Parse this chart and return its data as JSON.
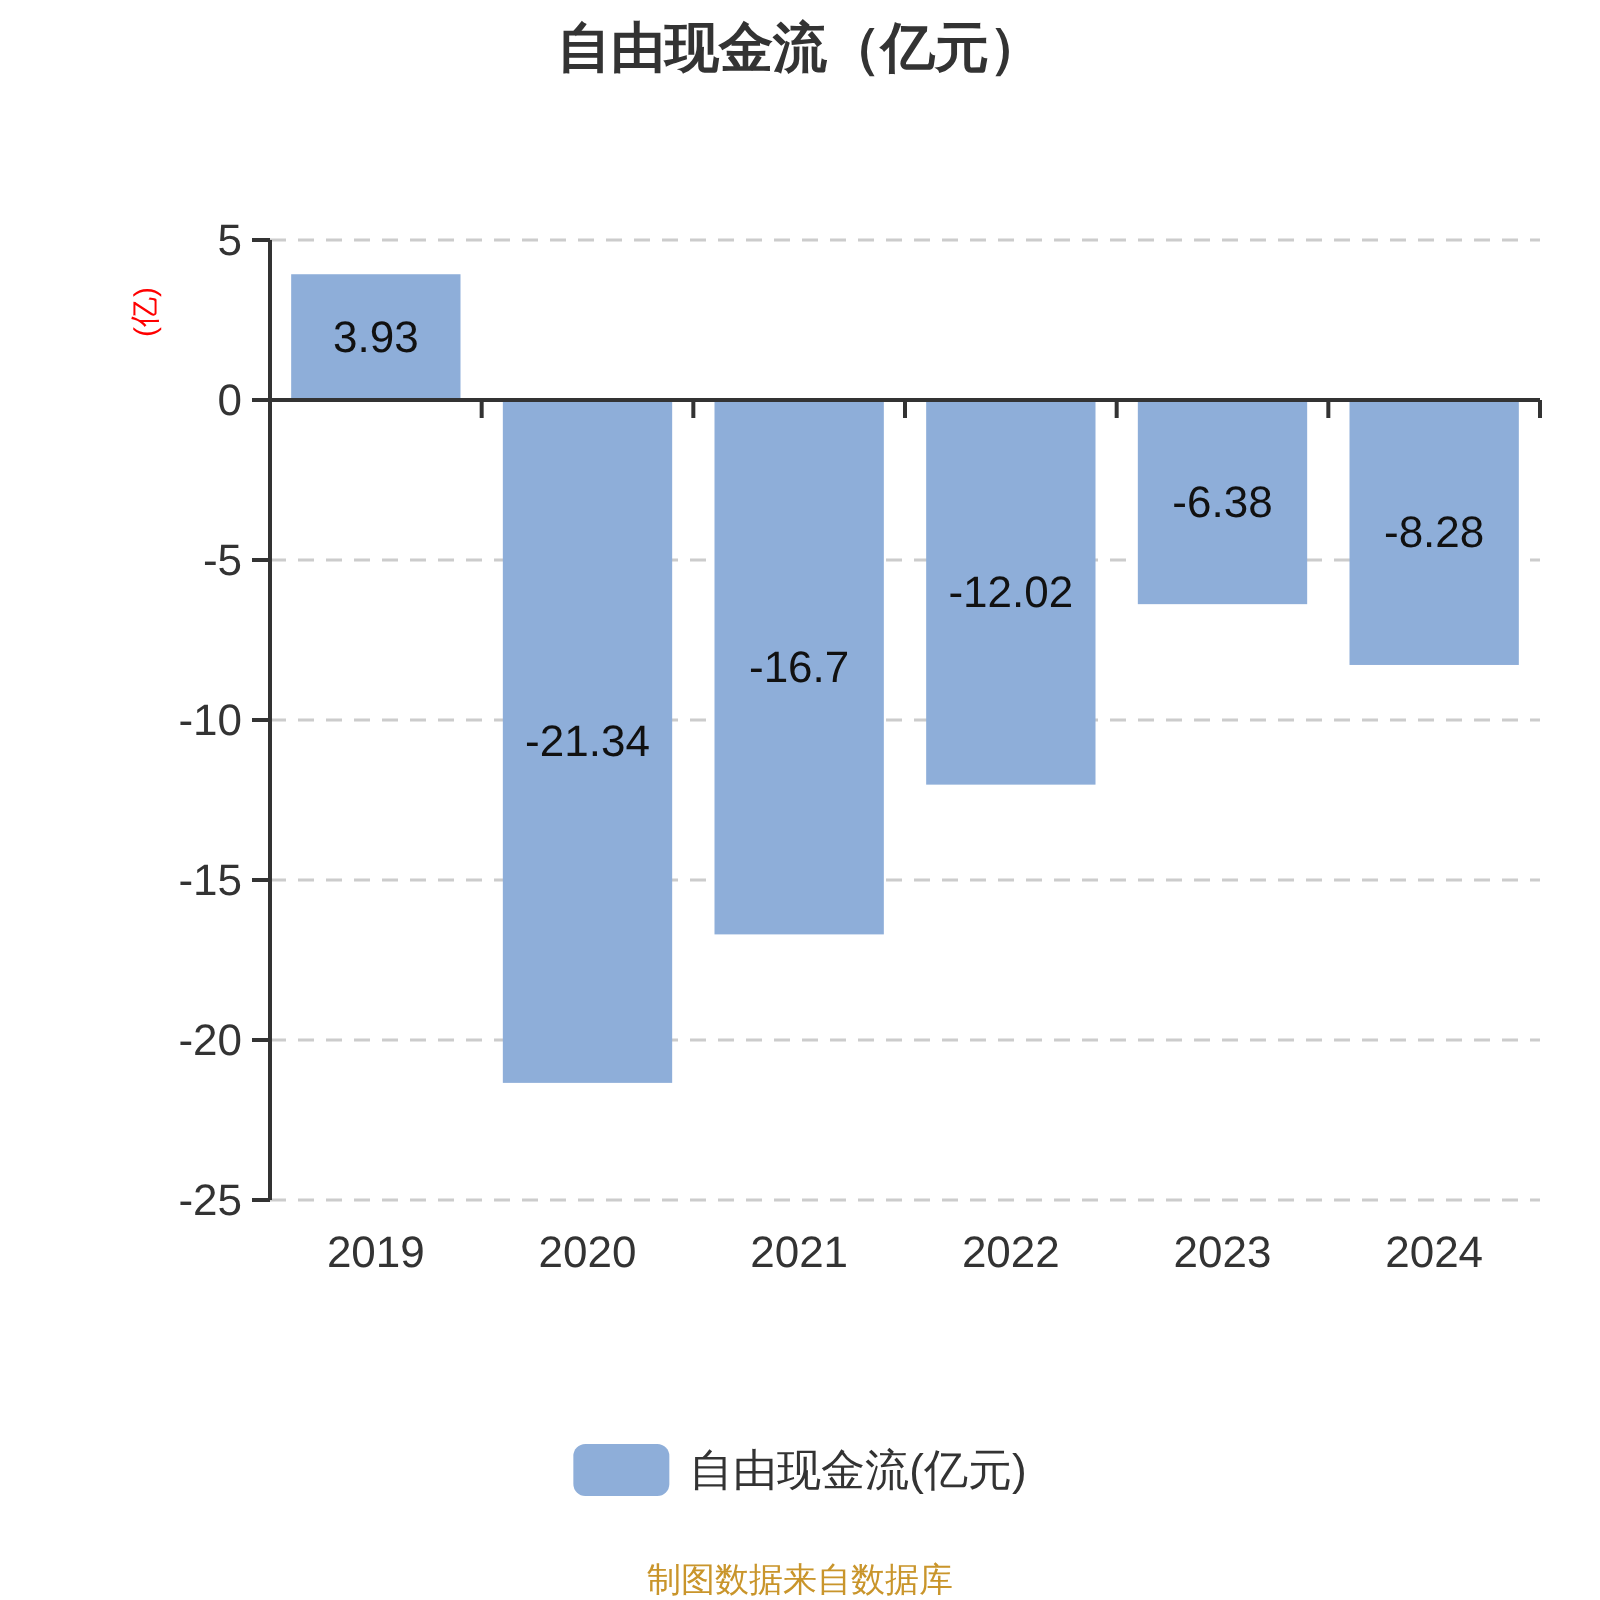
{
  "chart_data": {
    "type": "bar",
    "title": "自由现金流（亿元）",
    "ylabel": "(亿)",
    "categories": [
      "2019",
      "2020",
      "2021",
      "2022",
      "2023",
      "2024"
    ],
    "series": [
      {
        "name": "自由现金流(亿元)",
        "color": "#8eaed9",
        "values": [
          3.93,
          -21.34,
          -16.7,
          -12.02,
          -6.38,
          -8.28
        ]
      }
    ],
    "ylim": [
      -25,
      5
    ],
    "yticks": [
      -25,
      -20,
      -15,
      -10,
      -5,
      0,
      5
    ],
    "grid": "y",
    "legend": "bottom",
    "data_labels": true,
    "annotations": [
      "制图数据来自数据库"
    ]
  }
}
